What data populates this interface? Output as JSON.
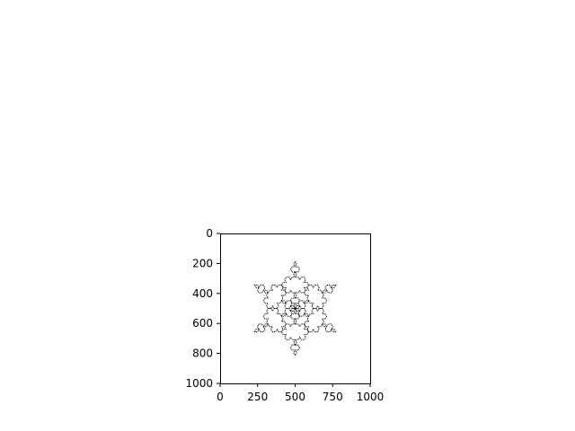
{
  "chart_data": {
    "type": "image",
    "title": "",
    "xlabel": "",
    "ylabel": "",
    "xlim": [
      0,
      1000
    ],
    "ylim": [
      1000,
      0
    ],
    "y_inverted": true,
    "grid": false,
    "x_ticks": [
      0,
      250,
      500,
      750,
      1000
    ],
    "x_tick_labels": [
      "0",
      "250",
      "500",
      "750",
      "1000"
    ],
    "y_ticks": [
      0,
      200,
      400,
      600,
      800,
      1000
    ],
    "y_tick_labels": [
      "0",
      "200",
      "400",
      "600",
      "800",
      "1000"
    ],
    "image_content": {
      "description_kind": "fractal-outline",
      "center": [
        500,
        500
      ],
      "outer_extent": {
        "x": [
          165,
          835
        ],
        "y": [
          120,
          880
        ]
      },
      "stroke_color": "#000000",
      "background_color": "#ffffff",
      "dotted": true
    }
  }
}
